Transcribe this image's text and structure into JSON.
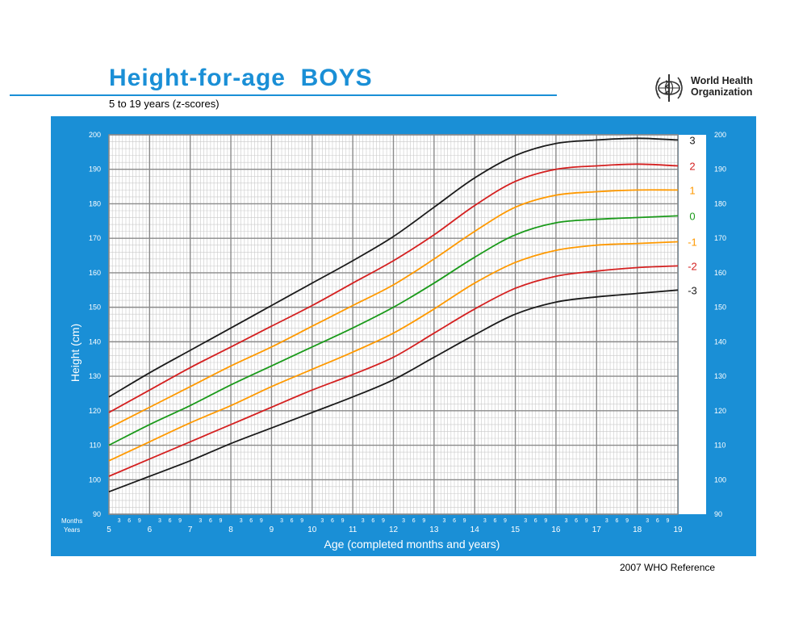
{
  "header": {
    "title": "Height-for-age  BOYS",
    "subtitle": "5 to 19 years (z-scores)",
    "org_logo_text": [
      "World Health",
      "Organization"
    ]
  },
  "footer": {
    "reference": "2007 WHO Reference"
  },
  "colors": {
    "panel": "#1a8fd6",
    "title": "#1a8fd6"
  },
  "chart_data": {
    "type": "line",
    "xlabel": "Age (completed months and years)",
    "ylabel": "Height (cm)",
    "x_row_labels": {
      "months": "Months",
      "years": "Years"
    },
    "xlim": [
      5,
      19
    ],
    "ylim": [
      90,
      200
    ],
    "x_major_ticks": [
      5,
      6,
      7,
      8,
      9,
      10,
      11,
      12,
      13,
      14,
      15,
      16,
      17,
      18,
      19
    ],
    "month_tick_labels": [
      "3",
      "6",
      "9"
    ],
    "y_ticks": [
      90,
      100,
      110,
      120,
      130,
      140,
      150,
      160,
      170,
      180,
      190,
      200
    ],
    "grid": true,
    "legend": "curve labels at right end of each curve",
    "x": [
      5,
      6,
      7,
      8,
      9,
      10,
      11,
      12,
      13,
      14,
      15,
      16,
      17,
      18,
      19
    ],
    "series": [
      {
        "name": "3",
        "color": "#1a1a1a",
        "values": [
          124.0,
          131.0,
          137.5,
          144.0,
          150.5,
          157.0,
          163.5,
          170.5,
          179.0,
          187.5,
          194.0,
          197.5,
          198.5,
          199.0,
          198.5
        ]
      },
      {
        "name": "2",
        "color": "#d42020",
        "values": [
          119.5,
          126.0,
          132.5,
          138.5,
          144.5,
          150.5,
          157.0,
          163.5,
          171.0,
          179.5,
          186.5,
          190.0,
          191.0,
          191.5,
          191.0
        ]
      },
      {
        "name": "1",
        "color": "#ff9900",
        "values": [
          115.0,
          121.0,
          127.0,
          133.0,
          138.5,
          144.5,
          150.5,
          156.5,
          164.0,
          172.0,
          179.0,
          182.5,
          183.5,
          184.0,
          184.0
        ]
      },
      {
        "name": "0",
        "color": "#1a9a1a",
        "values": [
          110.0,
          116.0,
          121.5,
          127.5,
          133.0,
          138.5,
          144.0,
          150.0,
          157.0,
          164.5,
          171.0,
          174.5,
          175.5,
          176.0,
          176.5
        ]
      },
      {
        "name": "-1",
        "color": "#ff9900",
        "values": [
          105.5,
          111.0,
          116.5,
          121.5,
          127.0,
          132.0,
          137.0,
          142.5,
          149.5,
          157.0,
          163.0,
          166.5,
          168.0,
          168.5,
          169.0
        ]
      },
      {
        "name": "-2",
        "color": "#d42020",
        "values": [
          101.0,
          106.0,
          111.0,
          116.0,
          121.0,
          126.0,
          130.5,
          135.5,
          142.5,
          149.5,
          155.5,
          159.0,
          160.5,
          161.5,
          162.0
        ]
      },
      {
        "name": "-3",
        "color": "#1a1a1a",
        "values": [
          96.5,
          101.0,
          105.5,
          110.5,
          115.0,
          119.5,
          124.0,
          129.0,
          135.5,
          142.0,
          148.0,
          151.5,
          153.0,
          154.0,
          155.0
        ]
      }
    ]
  }
}
